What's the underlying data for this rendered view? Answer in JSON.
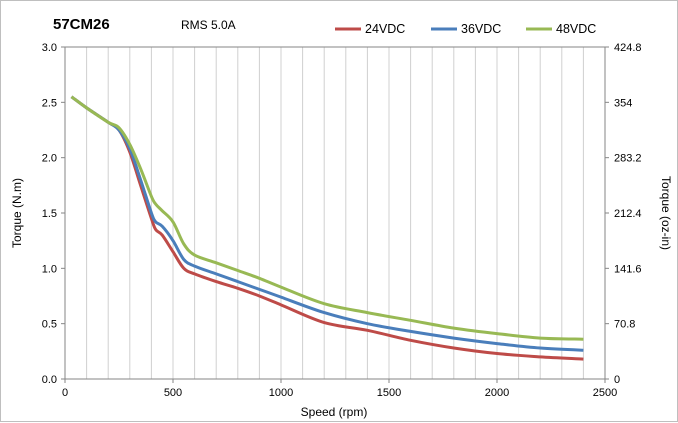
{
  "chart_data": {
    "type": "line",
    "title": "57CM26",
    "subtitle": "RMS 5.0A",
    "xlabel": "Speed (rpm)",
    "ylabel": "Torque (N.m)",
    "ylabel_right": "Torque (oz-in)",
    "xlim": [
      0,
      2500
    ],
    "ylim": [
      0,
      3.0
    ],
    "x_ticks": [
      "0",
      "500",
      "1000",
      "1500",
      "2000",
      "2500"
    ],
    "y_ticks": [
      "0.0",
      "0.5",
      "1.0",
      "1.5",
      "2.0",
      "2.5",
      "3.0"
    ],
    "y_ticks_right": [
      "0",
      "70.8",
      "141.6",
      "212.4",
      "283.2",
      "354",
      "424.8"
    ],
    "grid": "vertical",
    "legend_position": "top-right",
    "x": [
      30,
      100,
      200,
      250,
      300,
      350,
      400,
      420,
      450,
      500,
      550,
      600,
      700,
      800,
      900,
      1000,
      1200,
      1400,
      1600,
      1800,
      2000,
      2200,
      2400
    ],
    "series": [
      {
        "name": "24VDC",
        "color": "#be4b48",
        "values": [
          2.55,
          2.45,
          2.32,
          2.25,
          2.05,
          1.75,
          1.45,
          1.35,
          1.3,
          1.15,
          1.0,
          0.95,
          0.88,
          0.82,
          0.75,
          0.67,
          0.51,
          0.44,
          0.35,
          0.28,
          0.23,
          0.2,
          0.18
        ]
      },
      {
        "name": "36VDC",
        "color": "#4a7ebb",
        "values": [
          2.55,
          2.45,
          2.32,
          2.25,
          2.08,
          1.8,
          1.5,
          1.42,
          1.38,
          1.25,
          1.08,
          1.02,
          0.95,
          0.88,
          0.81,
          0.74,
          0.6,
          0.5,
          0.43,
          0.37,
          0.32,
          0.28,
          0.26
        ]
      },
      {
        "name": "48VDC",
        "color": "#98b954",
        "values": [
          2.55,
          2.45,
          2.32,
          2.27,
          2.12,
          1.9,
          1.65,
          1.58,
          1.52,
          1.42,
          1.22,
          1.12,
          1.05,
          0.98,
          0.91,
          0.83,
          0.68,
          0.6,
          0.53,
          0.46,
          0.41,
          0.37,
          0.36
        ]
      }
    ]
  }
}
